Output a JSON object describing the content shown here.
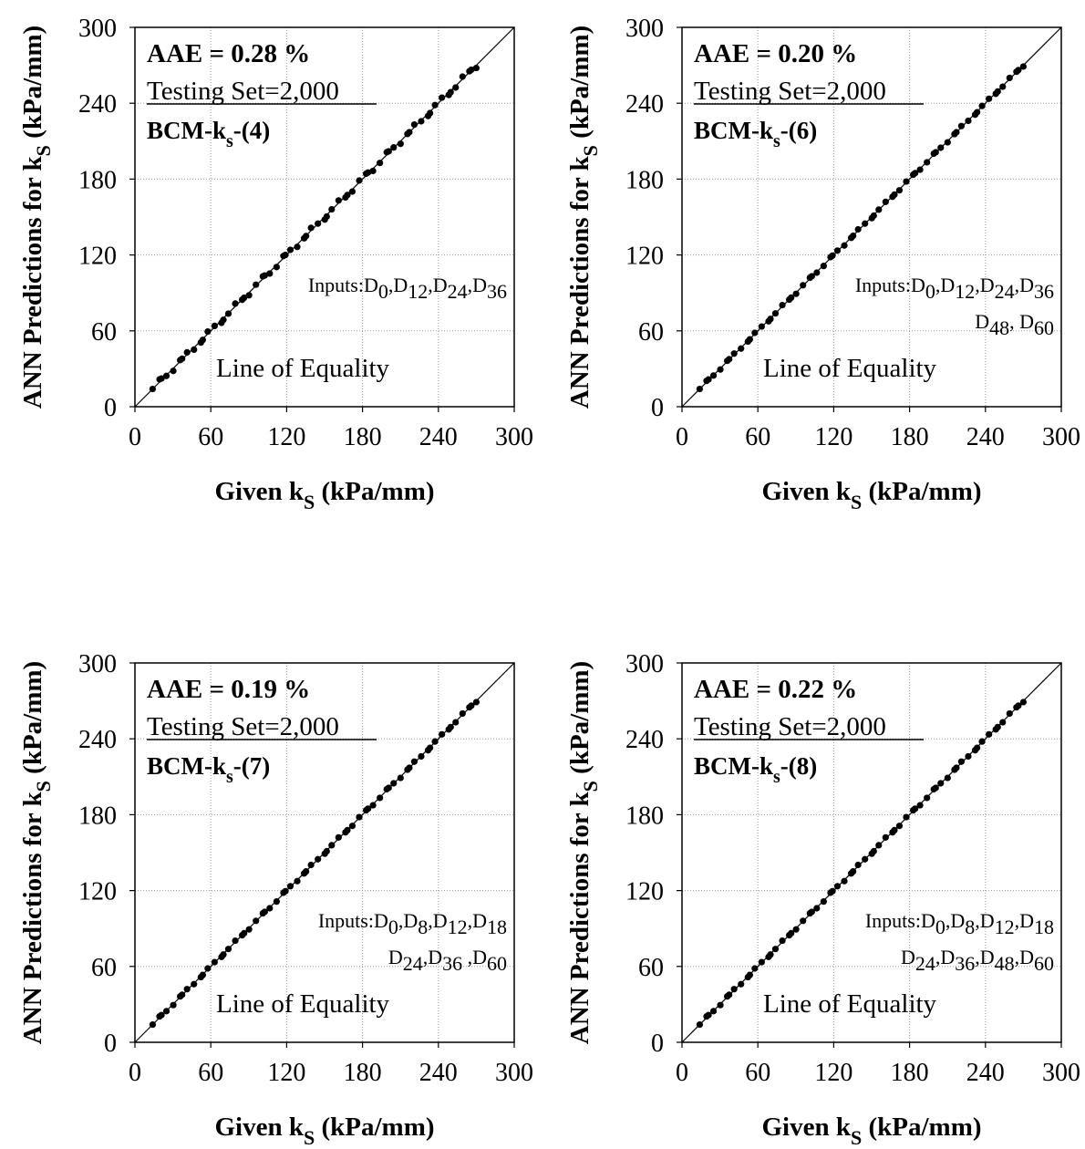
{
  "chart_data": [
    {
      "type": "scatter",
      "aae": "AAE = 0.28 %",
      "testing_set": "Testing Set=2,000",
      "model_prefix": "BCM-k",
      "model_sub": "s",
      "model_suffix": "-(4)",
      "inputs_lines": [
        [
          [
            "Inputs:D",
            ""
          ],
          [
            "0",
            "sub"
          ],
          [
            ",D",
            ""
          ],
          [
            "12",
            "sub"
          ],
          [
            ",D",
            ""
          ],
          [
            "24",
            "sub"
          ],
          [
            ",D",
            ""
          ],
          [
            "36",
            "sub"
          ]
        ]
      ],
      "equality_label": "Line of Equality",
      "xlabel": {
        "main": "Given k",
        "sub": "S",
        "tail": " (kPa/mm)"
      },
      "ylabel": {
        "main": "ANN Predictions for k",
        "sub": "S",
        "tail": " (kPa/mm)"
      },
      "xlim": [
        0,
        300
      ],
      "ylim": [
        0,
        300
      ],
      "xticks": [
        "0",
        "60",
        "120",
        "180",
        "240",
        "300"
      ],
      "yticks": [
        "0",
        "60",
        "120",
        "180",
        "240",
        "300"
      ],
      "grid": true,
      "equality_line": [
        [
          0,
          0
        ],
        [
          300,
          300
        ]
      ],
      "points_range": [
        14,
        270
      ],
      "points_count": 48,
      "deviation": 2.2
    },
    {
      "type": "scatter",
      "aae": "AAE = 0.20 %",
      "testing_set": "Testing Set=2,000",
      "model_prefix": "BCM-k",
      "model_sub": "s",
      "model_suffix": "-(6)",
      "inputs_lines": [
        [
          [
            "Inputs:D",
            ""
          ],
          [
            "0",
            "sub"
          ],
          [
            ",D",
            ""
          ],
          [
            "12",
            "sub"
          ],
          [
            ",D",
            ""
          ],
          [
            "24",
            "sub"
          ],
          [
            ",D",
            ""
          ],
          [
            "36",
            "sub"
          ]
        ],
        [
          [
            "D",
            ""
          ],
          [
            "48",
            "sub"
          ],
          [
            ", D",
            ""
          ],
          [
            "60",
            "sub"
          ]
        ]
      ],
      "equality_label": "Line of Equality",
      "xlabel": {
        "main": "Given k",
        "sub": "S",
        "tail": " (kPa/mm)"
      },
      "ylabel": {
        "main": "ANN Predictions for k",
        "sub": "S",
        "tail": " (kPa/mm)"
      },
      "xlim": [
        0,
        300
      ],
      "ylim": [
        0,
        300
      ],
      "xticks": [
        "0",
        "60",
        "120",
        "180",
        "240",
        "300"
      ],
      "yticks": [
        "0",
        "60",
        "120",
        "180",
        "240",
        "300"
      ],
      "grid": true,
      "equality_line": [
        [
          0,
          0
        ],
        [
          300,
          300
        ]
      ],
      "points_range": [
        14,
        270
      ],
      "points_count": 48,
      "deviation": 1.0
    },
    {
      "type": "scatter",
      "aae": "AAE = 0.19 %",
      "testing_set": "Testing Set=2,000",
      "model_prefix": "BCM-k",
      "model_sub": "s",
      "model_suffix": "-(7)",
      "inputs_lines": [
        [
          [
            "Inputs:D",
            ""
          ],
          [
            "0",
            "sub"
          ],
          [
            ",D",
            ""
          ],
          [
            "8",
            "sub"
          ],
          [
            ",D",
            ""
          ],
          [
            "12",
            "sub"
          ],
          [
            ",D",
            ""
          ],
          [
            "18",
            "sub"
          ]
        ],
        [
          [
            "D",
            ""
          ],
          [
            "24",
            "sub"
          ],
          [
            ",D",
            ""
          ],
          [
            "36",
            "sub"
          ],
          [
            " ,D",
            ""
          ],
          [
            "60",
            "sub"
          ]
        ]
      ],
      "equality_label": "Line of Equality",
      "xlabel": {
        "main": "Given k",
        "sub": "S",
        "tail": " (kPa/mm)"
      },
      "ylabel": {
        "main": "ANN Predictions for k",
        "sub": "S",
        "tail": " (kPa/mm)"
      },
      "xlim": [
        0,
        300
      ],
      "ylim": [
        0,
        300
      ],
      "xticks": [
        "0",
        "60",
        "120",
        "180",
        "240",
        "300"
      ],
      "yticks": [
        "0",
        "60",
        "120",
        "180",
        "240",
        "300"
      ],
      "grid": true,
      "equality_line": [
        [
          0,
          0
        ],
        [
          300,
          300
        ]
      ],
      "points_range": [
        14,
        270
      ],
      "points_count": 48,
      "deviation": 1.0
    },
    {
      "type": "scatter",
      "aae": "AAE = 0.22 %",
      "testing_set": "Testing Set=2,000",
      "model_prefix": "BCM-k",
      "model_sub": "s",
      "model_suffix": "-(8)",
      "inputs_lines": [
        [
          [
            "Inputs:D",
            ""
          ],
          [
            "0",
            "sub"
          ],
          [
            ",D",
            ""
          ],
          [
            "8",
            "sub"
          ],
          [
            ",D",
            ""
          ],
          [
            "12",
            "sub"
          ],
          [
            ",D",
            ""
          ],
          [
            "18",
            "sub"
          ]
        ],
        [
          [
            "D",
            ""
          ],
          [
            "24",
            "sub"
          ],
          [
            ",D",
            ""
          ],
          [
            "36",
            "sub"
          ],
          [
            ",D",
            ""
          ],
          [
            "48",
            "sub"
          ],
          [
            ",D",
            ""
          ],
          [
            "60",
            "sub"
          ]
        ]
      ],
      "equality_label": "Line of Equality",
      "xlabel": {
        "main": "Given k",
        "sub": "S",
        "tail": " (kPa/mm)"
      },
      "ylabel": {
        "main": "ANN Predictions for k",
        "sub": "S",
        "tail": " (kPa/mm)"
      },
      "xlim": [
        0,
        300
      ],
      "ylim": [
        0,
        300
      ],
      "xticks": [
        "0",
        "60",
        "120",
        "180",
        "240",
        "300"
      ],
      "yticks": [
        "0",
        "60",
        "120",
        "180",
        "240",
        "300"
      ],
      "grid": true,
      "equality_line": [
        [
          0,
          0
        ],
        [
          300,
          300
        ]
      ],
      "points_range": [
        14,
        270
      ],
      "points_count": 48,
      "deviation": 1.0
    }
  ]
}
